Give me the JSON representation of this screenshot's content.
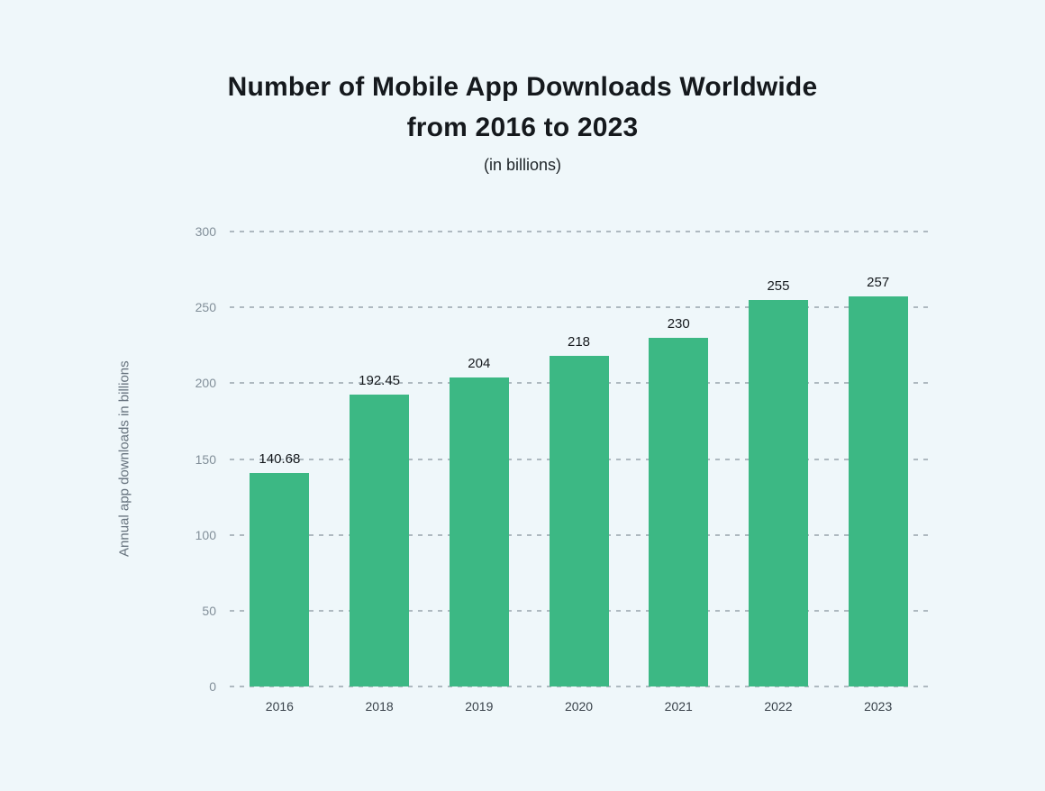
{
  "page": {
    "background_color": "#eff7fa"
  },
  "title_lines": {
    "line1": "Number of Mobile App Downloads Worldwide",
    "line2": "from 2016 to 2023"
  },
  "chart_data": {
    "type": "bar",
    "title": "Number of Mobile App Downloads Worldwide from 2016 to 2023",
    "subtitle": "(in billions)",
    "ylabel": "Annual app downloads in billions",
    "xlabel": "",
    "categories": [
      "2016",
      "2018",
      "2019",
      "2020",
      "2021",
      "2022",
      "2023"
    ],
    "values": [
      140.68,
      192.45,
      204,
      218,
      230,
      255,
      257
    ],
    "value_labels": [
      "140.68",
      "192.45",
      "204",
      "218",
      "230",
      "255",
      "257"
    ],
    "ylim": [
      0,
      300
    ],
    "yticks": [
      0,
      50,
      100,
      150,
      200,
      250,
      300
    ],
    "grid": "horizontal-dashed",
    "legend": "none",
    "bar_color": "#3cb884",
    "grid_color": "#aeb9c0",
    "tick_color": "#828f99",
    "value_label_color": "#15191d"
  }
}
